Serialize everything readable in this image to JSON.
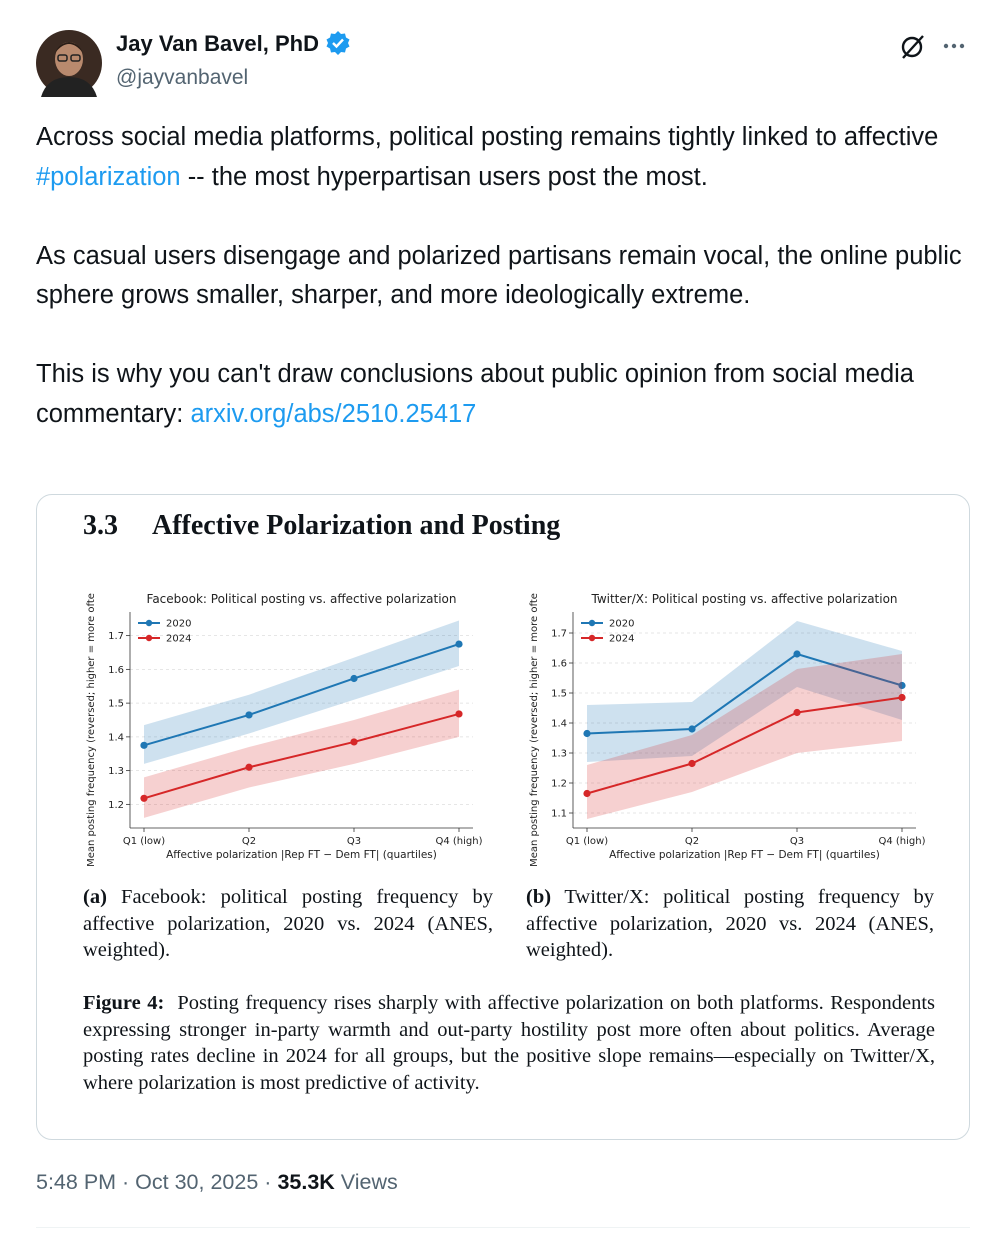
{
  "author": {
    "name": "Jay Van Bavel, PhD",
    "handle": "@jayvanbavel"
  },
  "body": {
    "paragraph_1": {
      "before": "Across social media platforms, political posting remains tightly linked to affective ",
      "hashtag": "#polarization",
      "after": " -- the most hyperpartisan users post the most."
    },
    "paragraph_2": "As casual users disengage and polarized partisans remain vocal, the online public sphere grows smaller, sharper, and more ideologically extreme.",
    "paragraph_3": {
      "before": "This is why you can't draw conclusions about public opinion from social media commentary: ",
      "link": "arxiv.org/abs/2510.25417"
    }
  },
  "figure": {
    "section_number": "3.3",
    "section_title": "Affective Polarization and Posting",
    "caption_a": {
      "label": "(a)",
      "text": "Facebook: political posting frequency by affective polarization, 2020 vs. 2024 (ANES, weighted)."
    },
    "caption_b": {
      "label": "(b)",
      "text": "Twitter/X: political posting frequency by affective polarization, 2020 vs. 2024 (ANES, weighted)."
    },
    "caption": {
      "label": "Figure 4:",
      "text": "Posting frequency rises sharply with affective polarization on both platforms. Respondents expressing stronger in-party warmth and out-party hostility post more often about politics. Average posting rates decline in 2024 for all groups, but the positive slope remains—especially on Twitter/X, where polarization is most predictive of activity."
    }
  },
  "chart_data": [
    {
      "type": "line",
      "title": "Facebook: Political posting vs. affective polarization",
      "x_label": "Affective polarization |Rep FT − Dem FT| (quartiles)",
      "y_label": "Mean posting frequency (reversed; higher = more ofte",
      "categories": [
        "Q1 (low)",
        "Q2",
        "Q3",
        "Q4 (high)"
      ],
      "series": [
        {
          "name": "2020",
          "color": "#1f77b4",
          "values": [
            1.375,
            1.465,
            1.573,
            1.675
          ],
          "lower": [
            1.32,
            1.41,
            1.51,
            1.61
          ],
          "upper": [
            1.435,
            1.525,
            1.635,
            1.745
          ]
        },
        {
          "name": "2024",
          "color": "#d62728",
          "values": [
            1.218,
            1.31,
            1.385,
            1.468
          ],
          "lower": [
            1.16,
            1.25,
            1.32,
            1.4
          ],
          "upper": [
            1.28,
            1.37,
            1.45,
            1.54
          ]
        }
      ],
      "ylim": [
        1.13,
        1.77
      ],
      "yticks": [
        1.2,
        1.3,
        1.4,
        1.5,
        1.6,
        1.7
      ],
      "grid": true,
      "legend": "upper-left"
    },
    {
      "type": "line",
      "title": "Twitter/X: Political posting vs. affective polarization",
      "x_label": "Affective polarization |Rep FT − Dem FT| (quartiles)",
      "y_label": "Mean posting frequency (reversed; higher = more ofte",
      "categories": [
        "Q1 (low)",
        "Q2",
        "Q3",
        "Q4 (high)"
      ],
      "series": [
        {
          "name": "2020",
          "color": "#1f77b4",
          "values": [
            1.365,
            1.38,
            1.63,
            1.525
          ],
          "lower": [
            1.27,
            1.29,
            1.52,
            1.41
          ],
          "upper": [
            1.46,
            1.47,
            1.74,
            1.64
          ]
        },
        {
          "name": "2024",
          "color": "#d62728",
          "values": [
            1.165,
            1.265,
            1.435,
            1.485
          ],
          "lower": [
            1.08,
            1.17,
            1.3,
            1.34
          ],
          "upper": [
            1.26,
            1.36,
            1.58,
            1.63
          ]
        }
      ],
      "ylim": [
        1.05,
        1.77
      ],
      "yticks": [
        1.1,
        1.2,
        1.3,
        1.4,
        1.5,
        1.6,
        1.7
      ],
      "grid": true,
      "legend": "upper-left"
    }
  ],
  "footer": {
    "timestamp": "5:48 PM · Oct 30, 2025",
    "separator": "·",
    "views_count": "35.3K",
    "views_label": "Views"
  }
}
